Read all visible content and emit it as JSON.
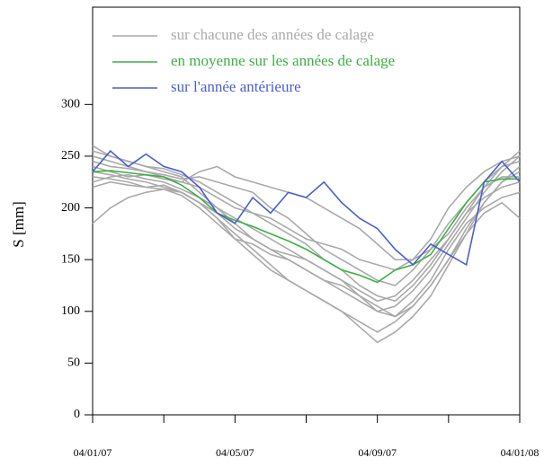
{
  "chart_data": {
    "type": "line",
    "ylabel": "S [mm]",
    "x": [
      0,
      0.5,
      1,
      1.5,
      2,
      2.5,
      3,
      3.5,
      4,
      4.5,
      5,
      5.5,
      6,
      6.5,
      7,
      7.5,
      8,
      8.5,
      9,
      9.5,
      10,
      10.5,
      11,
      11.5,
      12
    ],
    "xlim": [
      0,
      12
    ],
    "xticks": [
      {
        "value": 0,
        "label": "04/01/07"
      },
      {
        "value": 4,
        "label": "04/05/07"
      },
      {
        "value": 8,
        "label": "04/09/07"
      },
      {
        "value": 12,
        "label": "04/01/08"
      }
    ],
    "xminor_ticks": [
      2,
      6,
      10
    ],
    "ylim": [
      0,
      394
    ],
    "yticks": [
      0,
      50,
      100,
      150,
      200,
      250,
      300
    ],
    "series": [
      {
        "name": "sur chacune des années de calage",
        "color": "#aaaaaa",
        "values": [
          260,
          250,
          245,
          240,
          235,
          230,
          215,
          200,
          185,
          170,
          160,
          150,
          140,
          130,
          120,
          110,
          100,
          105,
          120,
          140,
          165,
          190,
          215,
          235,
          250
        ]
      },
      {
        "color": "#aaaaaa",
        "values": [
          230,
          228,
          225,
          220,
          222,
          215,
          205,
          190,
          175,
          160,
          145,
          130,
          120,
          110,
          100,
          90,
          80,
          90,
          105,
          125,
          150,
          180,
          205,
          225,
          240
        ]
      },
      {
        "color": "#aaaaaa",
        "values": [
          245,
          240,
          238,
          235,
          232,
          228,
          230,
          225,
          220,
          215,
          200,
          190,
          175,
          160,
          150,
          140,
          130,
          125,
          140,
          160,
          185,
          205,
          225,
          240,
          245
        ]
      },
      {
        "color": "#aaaaaa",
        "values": [
          185,
          200,
          210,
          215,
          218,
          215,
          205,
          195,
          180,
          170,
          160,
          155,
          150,
          140,
          130,
          120,
          110,
          115,
          130,
          150,
          170,
          195,
          210,
          220,
          225
        ]
      },
      {
        "color": "#aaaaaa",
        "values": [
          250,
          245,
          240,
          235,
          230,
          225,
          220,
          210,
          200,
          195,
          185,
          175,
          165,
          150,
          140,
          125,
          115,
          110,
          125,
          145,
          170,
          195,
          220,
          240,
          255
        ]
      },
      {
        "color": "#aaaaaa",
        "values": [
          225,
          230,
          232,
          228,
          225,
          218,
          210,
          200,
          190,
          180,
          170,
          160,
          150,
          140,
          130,
          115,
          100,
          95,
          110,
          130,
          160,
          185,
          200,
          210,
          215
        ]
      },
      {
        "color": "#aaaaaa",
        "values": [
          240,
          235,
          230,
          232,
          228,
          225,
          235,
          240,
          230,
          225,
          220,
          215,
          210,
          200,
          190,
          180,
          165,
          150,
          150,
          170,
          200,
          220,
          235,
          245,
          250
        ]
      },
      {
        "color": "#aaaaaa",
        "values": [
          235,
          232,
          228,
          225,
          220,
          215,
          205,
          190,
          170,
          155,
          140,
          130,
          120,
          110,
          100,
          85,
          70,
          80,
          95,
          115,
          145,
          175,
          205,
          225,
          235
        ]
      },
      {
        "color": "#aaaaaa",
        "values": [
          255,
          250,
          245,
          240,
          238,
          232,
          225,
          215,
          205,
          195,
          190,
          180,
          170,
          165,
          160,
          150,
          145,
          140,
          150,
          160,
          175,
          200,
          220,
          230,
          230
        ]
      },
      {
        "color": "#aaaaaa",
        "values": [
          220,
          225,
          222,
          220,
          218,
          212,
          200,
          185,
          170,
          165,
          155,
          150,
          140,
          130,
          125,
          115,
          105,
          95,
          105,
          125,
          150,
          175,
          195,
          205,
          190
        ]
      },
      {
        "name": "en moyenne sur les années de calage",
        "color": "#3cb043",
        "values": [
          235,
          236,
          234,
          232,
          230,
          222,
          210,
          195,
          188,
          182,
          175,
          168,
          160,
          150,
          140,
          135,
          128,
          140,
          145,
          155,
          180,
          205,
          225,
          228,
          228
        ]
      },
      {
        "name": "sur l'année antérieure",
        "color": "#4a5fd0",
        "values": [
          235,
          255,
          240,
          252,
          240,
          235,
          220,
          195,
          185,
          210,
          195,
          215,
          210,
          225,
          205,
          190,
          180,
          160,
          145,
          165,
          155,
          145,
          225,
          245,
          225
        ]
      }
    ]
  }
}
